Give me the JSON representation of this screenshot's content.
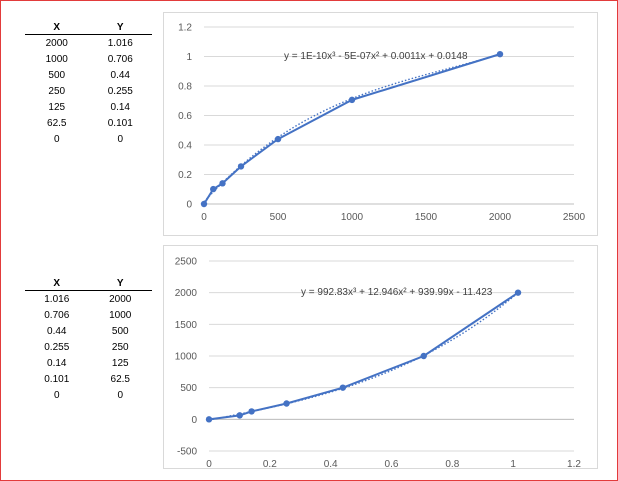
{
  "table1": {
    "headers": [
      "X",
      "Y"
    ],
    "rows": [
      [
        "2000",
        "1.016"
      ],
      [
        "1000",
        "0.706"
      ],
      [
        "500",
        "0.44"
      ],
      [
        "250",
        "0.255"
      ],
      [
        "125",
        "0.14"
      ],
      [
        "62.5",
        "0.101"
      ],
      [
        "0",
        "0"
      ]
    ]
  },
  "table2": {
    "headers": [
      "X",
      "Y"
    ],
    "rows": [
      [
        "1.016",
        "2000"
      ],
      [
        "0.706",
        "1000"
      ],
      [
        "0.44",
        "500"
      ],
      [
        "0.255",
        "250"
      ],
      [
        "0.14",
        "125"
      ],
      [
        "0.101",
        "62.5"
      ],
      [
        "0",
        "0"
      ]
    ]
  },
  "chart_data": [
    {
      "type": "scatter",
      "x": [
        0,
        62.5,
        125,
        250,
        500,
        1000,
        2000
      ],
      "y": [
        0,
        0.101,
        0.14,
        0.255,
        0.44,
        0.706,
        1.016
      ],
      "xlim": [
        0,
        2500
      ],
      "ylim": [
        0,
        1.2
      ],
      "xticks": [
        "0",
        "500",
        "1000",
        "1500",
        "2000",
        "2500"
      ],
      "yticks": [
        "0",
        "0.2",
        "0.4",
        "0.6",
        "0.8",
        "1",
        "1.2"
      ],
      "trendline": "polynomial-3",
      "trend_coeffs": [
        1e-10,
        -5e-07,
        0.0011,
        0.0148
      ],
      "annotation": "y = 1E-10x³ - 5E-07x² + 0.0011x + 0.0148",
      "grid": "horizontal",
      "color": "#4472c4"
    },
    {
      "type": "scatter",
      "x": [
        0,
        0.101,
        0.14,
        0.255,
        0.44,
        0.706,
        1.016
      ],
      "y": [
        0,
        62.5,
        125,
        250,
        500,
        1000,
        2000
      ],
      "xlim": [
        0,
        1.2
      ],
      "ylim": [
        -500,
        2500
      ],
      "xticks": [
        "0",
        "0.2",
        "0.4",
        "0.6",
        "0.8",
        "1",
        "1.2"
      ],
      "yticks": [
        "-500",
        "0",
        "500",
        "1000",
        "1500",
        "2000",
        "2500"
      ],
      "trendline": "polynomial-3",
      "trend_coeffs": [
        992.83,
        12.946,
        939.99,
        -11.423
      ],
      "annotation": "y = 992.83x³ + 12.946x² + 939.99x - 11.423",
      "grid": "horizontal",
      "color": "#4472c4"
    }
  ]
}
